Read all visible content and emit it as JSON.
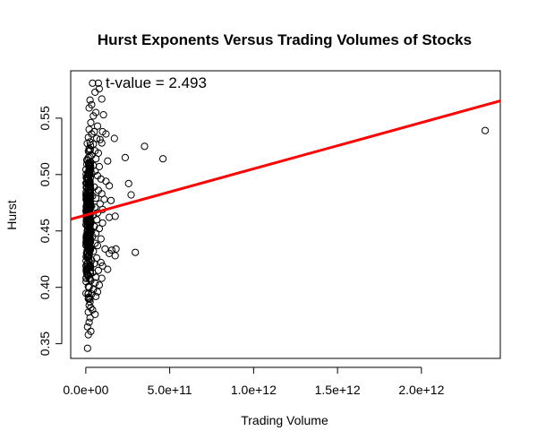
{
  "chart_data": {
    "type": "scatter",
    "title": "Hurst Exponents Versus Trading Volumes of Stocks",
    "xlabel": "Trading Volume",
    "ylabel": "Hurst",
    "xlim": [
      -90000000000.0,
      2470000000000.0
    ],
    "ylim": [
      0.337,
      0.592
    ],
    "x_ticks": [
      0,
      500000000000.0,
      1000000000000.0,
      1500000000000.0,
      2000000000000.0
    ],
    "x_tick_labels": [
      "0.0e+00",
      "5.0e+11",
      "1.0e+12",
      "1.5e+12",
      "2.0e+12"
    ],
    "y_ticks": [
      0.35,
      0.4,
      0.45,
      0.5,
      0.55
    ],
    "y_tick_labels": [
      "0.35",
      "0.40",
      "0.45",
      "0.50",
      "0.55"
    ],
    "annotation": "t-value = 2.493",
    "grid": false,
    "regression_line": {
      "intercept": 0.4641,
      "slope": 4.1e-14,
      "color": "#ff0000"
    },
    "points": [
      [
        40000000000.0,
        0.581
      ],
      [
        75000000000.0,
        0.581
      ],
      [
        55000000000.0,
        0.573
      ],
      [
        80000000000.0,
        0.576
      ],
      [
        25000000000.0,
        0.566
      ],
      [
        35000000000.0,
        0.562
      ],
      [
        20000000000.0,
        0.559
      ],
      [
        60000000000.0,
        0.555
      ],
      [
        95000000000.0,
        0.567
      ],
      [
        105000000000.0,
        0.553
      ],
      [
        45000000000.0,
        0.552
      ],
      [
        30000000000.0,
        0.546
      ],
      [
        70000000000.0,
        0.543
      ],
      [
        20000000000.0,
        0.54
      ],
      [
        50000000000.0,
        0.538
      ],
      [
        35000000000.0,
        0.536
      ],
      [
        100000000000.0,
        0.538
      ],
      [
        120000000000.0,
        0.536
      ],
      [
        15000000000.0,
        0.533
      ],
      [
        65000000000.0,
        0.532
      ],
      [
        85000000000.0,
        0.531
      ],
      [
        25000000000.0,
        0.529
      ],
      [
        45000000000.0,
        0.527
      ],
      [
        95000000000.0,
        0.528
      ],
      [
        170000000000.0,
        0.532
      ],
      [
        350000000000.0,
        0.525
      ],
      [
        20000000000.0,
        0.523
      ],
      [
        55000000000.0,
        0.521
      ],
      [
        75000000000.0,
        0.519
      ],
      [
        35000000000.0,
        0.517
      ],
      [
        15000000000.0,
        0.515
      ],
      [
        60000000000.0,
        0.514
      ],
      [
        235000000000.0,
        0.515
      ],
      [
        460000000000.0,
        0.514
      ],
      [
        130000000000.0,
        0.512
      ],
      [
        25000000000.0,
        0.51
      ],
      [
        45000000000.0,
        0.508
      ],
      [
        80000000000.0,
        0.507
      ],
      [
        20000000000.0,
        0.505
      ],
      [
        55000000000.0,
        0.503
      ],
      [
        35000000000.0,
        0.501
      ],
      [
        70000000000.0,
        0.499
      ],
      [
        15000000000.0,
        0.497
      ],
      [
        90000000000.0,
        0.496
      ],
      [
        120000000000.0,
        0.494
      ],
      [
        25000000000.0,
        0.493
      ],
      [
        255000000000.0,
        0.492
      ],
      [
        140000000000.0,
        0.49
      ],
      [
        50000000000.0,
        0.489
      ],
      [
        30000000000.0,
        0.487
      ],
      [
        75000000000.0,
        0.486
      ],
      [
        20000000000.0,
        0.484
      ],
      [
        95000000000.0,
        0.483
      ],
      [
        270000000000.0,
        0.482
      ],
      [
        40000000000.0,
        0.481
      ],
      [
        60000000000.0,
        0.479
      ],
      [
        110000000000.0,
        0.478
      ],
      [
        150000000000.0,
        0.477
      ],
      [
        25000000000.0,
        0.476
      ],
      [
        85000000000.0,
        0.474
      ],
      [
        35000000000.0,
        0.472
      ],
      [
        55000000000.0,
        0.471
      ],
      [
        100000000000.0,
        0.469
      ],
      [
        15000000000.0,
        0.468
      ],
      [
        70000000000.0,
        0.466
      ],
      [
        45000000000.0,
        0.464
      ],
      [
        175000000000.0,
        0.463
      ],
      [
        25000000000.0,
        0.462
      ],
      [
        140000000000.0,
        0.462
      ],
      [
        65000000000.0,
        0.46
      ],
      [
        30000000000.0,
        0.458
      ],
      [
        100000000000.0,
        0.457
      ],
      [
        20000000000.0,
        0.455
      ],
      [
        50000000000.0,
        0.454
      ],
      [
        80000000000.0,
        0.452
      ],
      [
        35000000000.0,
        0.45
      ],
      [
        60000000000.0,
        0.448
      ],
      [
        15000000000.0,
        0.447
      ],
      [
        40000000000.0,
        0.445
      ],
      [
        90000000000.0,
        0.443
      ],
      [
        25000000000.0,
        0.441
      ],
      [
        55000000000.0,
        0.439
      ],
      [
        70000000000.0,
        0.437
      ],
      [
        30000000000.0,
        0.435
      ],
      [
        115000000000.0,
        0.434
      ],
      [
        155000000000.0,
        0.433
      ],
      [
        180000000000.0,
        0.434
      ],
      [
        45000000000.0,
        0.432
      ],
      [
        295000000000.0,
        0.431
      ],
      [
        140000000000.0,
        0.43
      ],
      [
        175000000000.0,
        0.428
      ],
      [
        20000000000.0,
        0.428
      ],
      [
        65000000000.0,
        0.426
      ],
      [
        35000000000.0,
        0.424
      ],
      [
        90000000000.0,
        0.422
      ],
      [
        50000000000.0,
        0.421
      ],
      [
        100000000000.0,
        0.419
      ],
      [
        25000000000.0,
        0.418
      ],
      [
        130000000000.0,
        0.416
      ],
      [
        75000000000.0,
        0.415
      ],
      [
        40000000000.0,
        0.413
      ],
      [
        15000000000.0,
        0.411
      ],
      [
        60000000000.0,
        0.409
      ],
      [
        95000000000.0,
        0.408
      ],
      [
        30000000000.0,
        0.406
      ],
      [
        55000000000.0,
        0.404
      ],
      [
        80000000000.0,
        0.402
      ],
      [
        20000000000.0,
        0.4
      ],
      [
        45000000000.0,
        0.398
      ],
      [
        70000000000.0,
        0.396
      ],
      [
        35000000000.0,
        0.394
      ],
      [
        60000000000.0,
        0.392
      ],
      [
        15000000000.0,
        0.39
      ],
      [
        25000000000.0,
        0.387
      ],
      [
        20000000000.0,
        0.384
      ],
      [
        30000000000.0,
        0.382
      ],
      [
        40000000000.0,
        0.38
      ],
      [
        15000000000.0,
        0.378
      ],
      [
        55000000000.0,
        0.376
      ],
      [
        25000000000.0,
        0.373
      ],
      [
        20000000000.0,
        0.369
      ],
      [
        10000000000.0,
        0.365
      ],
      [
        30000000000.0,
        0.361
      ],
      [
        15000000000.0,
        0.358
      ],
      [
        10000000000.0,
        0.346
      ],
      [
        2380000000000.0,
        0.539
      ]
    ],
    "dense_cluster": {
      "x_center": 15000000000.0,
      "x_spread": 28000000000.0,
      "y_min": 0.36,
      "y_max": 0.56,
      "count": 320
    }
  }
}
